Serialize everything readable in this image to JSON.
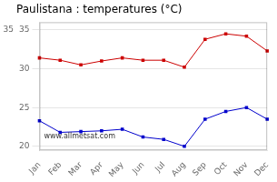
{
  "chart_data": {
    "type": "line",
    "title": "Paulistana : temperatures (°C)",
    "categories": [
      "Jan",
      "Feb",
      "Mar",
      "Apr",
      "May",
      "Jun",
      "Jul",
      "Aug",
      "Sep",
      "Oct",
      "Nov",
      "Dec"
    ],
    "series": [
      {
        "color": "#cc0000",
        "marker": "square",
        "values": [
          31.4,
          31.1,
          30.5,
          31.0,
          31.4,
          31.1,
          31.1,
          30.2,
          33.8,
          34.5,
          34.2,
          32.3
        ]
      },
      {
        "color": "#0000cc",
        "marker": "square",
        "values": [
          23.3,
          21.8,
          21.9,
          22.0,
          22.2,
          21.2,
          20.9,
          20.0,
          23.5,
          24.5,
          25.0,
          23.5
        ]
      }
    ],
    "ylim": [
      19.5,
      36
    ],
    "yticks": [
      20,
      25,
      30,
      35
    ],
    "grid": "y",
    "annotations": [
      {
        "text": "www.allmetsat.com"
      },
      {
        "text": "35",
        "y": 35
      }
    ]
  }
}
